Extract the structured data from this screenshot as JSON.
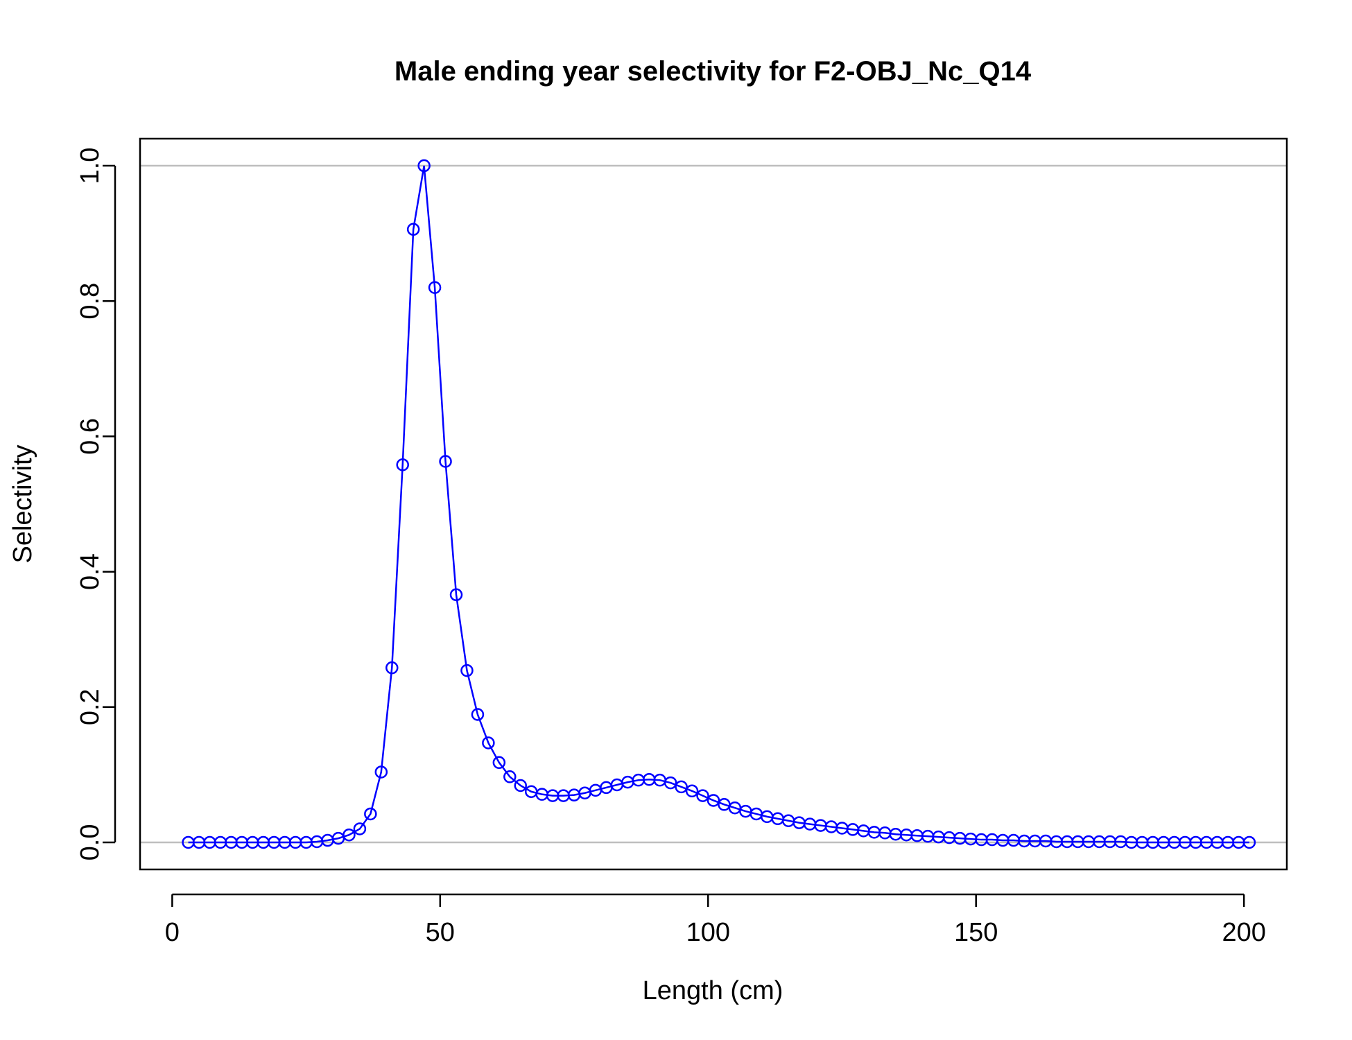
{
  "chart_data": {
    "type": "line",
    "title": "Male ending year selectivity for F2-OBJ_Nc_Q14",
    "xlabel": "Length (cm)",
    "ylabel": "Selectivity",
    "xlim": [
      -6,
      208
    ],
    "ylim": [
      -0.04,
      1.04
    ],
    "x_ticks": [
      0,
      50,
      100,
      150,
      200
    ],
    "y_ticks": [
      0.0,
      0.2,
      0.4,
      0.6,
      0.8,
      1.0
    ],
    "x_tick_labels": [
      "0",
      "50",
      "100",
      "150",
      "200"
    ],
    "y_tick_labels": [
      "0.0",
      "0.2",
      "0.4",
      "0.6",
      "0.8",
      "1.0"
    ],
    "reference_lines": [
      0,
      1
    ],
    "grid": false,
    "colors": {
      "series": "#0000ff",
      "reference": "#bebebe",
      "axis": "#000000"
    },
    "series": [
      {
        "marker": "open-circle",
        "x": [
          3,
          5,
          7,
          9,
          11,
          13,
          15,
          17,
          19,
          21,
          23,
          25,
          27,
          29,
          31,
          33,
          35,
          37,
          39,
          41,
          43,
          45,
          47,
          49,
          51,
          53,
          55,
          57,
          59,
          61,
          63,
          65,
          67,
          69,
          71,
          73,
          75,
          77,
          79,
          81,
          83,
          85,
          87,
          89,
          91,
          93,
          95,
          97,
          99,
          101,
          103,
          105,
          107,
          109,
          111,
          113,
          115,
          117,
          119,
          121,
          123,
          125,
          127,
          129,
          131,
          133,
          135,
          137,
          139,
          141,
          143,
          145,
          147,
          149,
          151,
          153,
          155,
          157,
          159,
          161,
          163,
          165,
          167,
          169,
          171,
          173,
          175,
          177,
          179,
          181,
          183,
          185,
          187,
          189,
          191,
          193,
          195,
          197,
          199,
          201
        ],
        "y": [
          0,
          0,
          0,
          0,
          0,
          0,
          0,
          0,
          0,
          0,
          0,
          0,
          0.001,
          0.003,
          0.006,
          0.011,
          0.02,
          0.042,
          0.104,
          0.258,
          0.558,
          0.906,
          1.0,
          0.82,
          0.563,
          0.366,
          0.254,
          0.189,
          0.147,
          0.118,
          0.097,
          0.084,
          0.075,
          0.071,
          0.069,
          0.069,
          0.07,
          0.073,
          0.077,
          0.081,
          0.085,
          0.089,
          0.092,
          0.093,
          0.092,
          0.088,
          0.082,
          0.076,
          0.069,
          0.062,
          0.056,
          0.051,
          0.046,
          0.042,
          0.038,
          0.035,
          0.032,
          0.029,
          0.027,
          0.025,
          0.023,
          0.021,
          0.019,
          0.017,
          0.015,
          0.014,
          0.012,
          0.011,
          0.01,
          0.009,
          0.008,
          0.007,
          0.006,
          0.005,
          0.004,
          0.004,
          0.003,
          0.003,
          0.002,
          0.002,
          0.002,
          0.001,
          0.001,
          0.001,
          0.001,
          0.001,
          0.001,
          0.001,
          0,
          0,
          0,
          0,
          0,
          0,
          0,
          0,
          0,
          0,
          0,
          0
        ]
      }
    ]
  }
}
